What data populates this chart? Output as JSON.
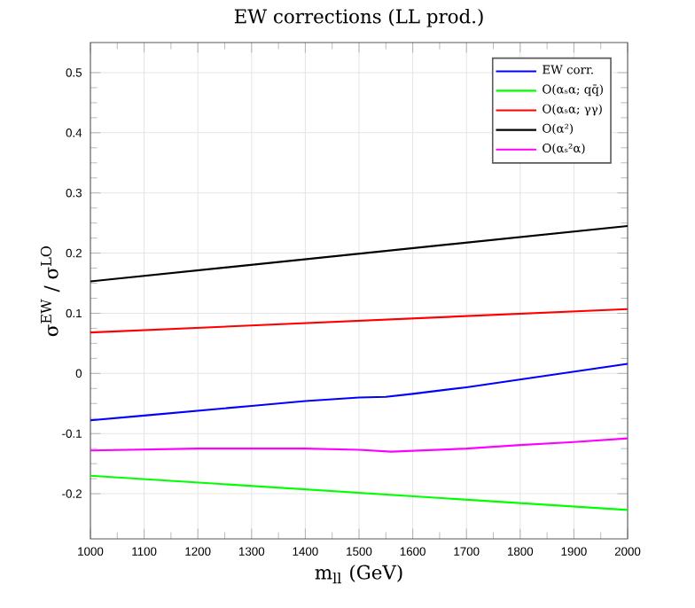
{
  "chart_data": {
    "type": "line",
    "title": "EW corrections (LL prod.)",
    "xlabel": "m$_{ll}$ (GeV)",
    "ylabel": "σ$^{EW}$ / σ$^{LO}$",
    "xlim": [
      1000,
      2000
    ],
    "ylim": [
      -0.275,
      0.55
    ],
    "xticks": [
      1000,
      1100,
      1200,
      1300,
      1400,
      1500,
      1600,
      1700,
      1800,
      1900,
      2000
    ],
    "yticks": [
      -0.2,
      -0.1,
      0,
      0.1,
      0.2,
      0.3,
      0.4,
      0.5
    ],
    "grid": true,
    "legend": "top right",
    "series": [
      {
        "name": "EW corr.",
        "color": "#0000ff",
        "x": [
          1000,
          1100,
          1200,
          1300,
          1400,
          1500,
          1550,
          1600,
          1700,
          1800,
          1900,
          2000
        ],
        "values": [
          -0.078,
          -0.07,
          -0.062,
          -0.054,
          -0.046,
          -0.04,
          -0.039,
          -0.034,
          -0.023,
          -0.01,
          0.003,
          0.016
        ]
      },
      {
        "name": "O(αₛα; qq̄)",
        "color": "#00ff00",
        "x": [
          1000,
          2000
        ],
        "values": [
          -0.17,
          -0.227
        ]
      },
      {
        "name": "O(αₛα; γγ)",
        "color": "#ff0000",
        "x": [
          1000,
          2000
        ],
        "values": [
          0.068,
          0.107
        ]
      },
      {
        "name": "O(α²)",
        "color": "#000000",
        "x": [
          1000,
          2000
        ],
        "values": [
          0.153,
          0.245
        ]
      },
      {
        "name": "O(αₛ²α)",
        "color": "#ff00ff",
        "x": [
          1000,
          1200,
          1400,
          1500,
          1560,
          1700,
          1800,
          1900,
          2000
        ],
        "values": [
          -0.128,
          -0.125,
          -0.125,
          -0.127,
          -0.13,
          -0.125,
          -0.119,
          -0.114,
          -0.108
        ]
      }
    ]
  }
}
